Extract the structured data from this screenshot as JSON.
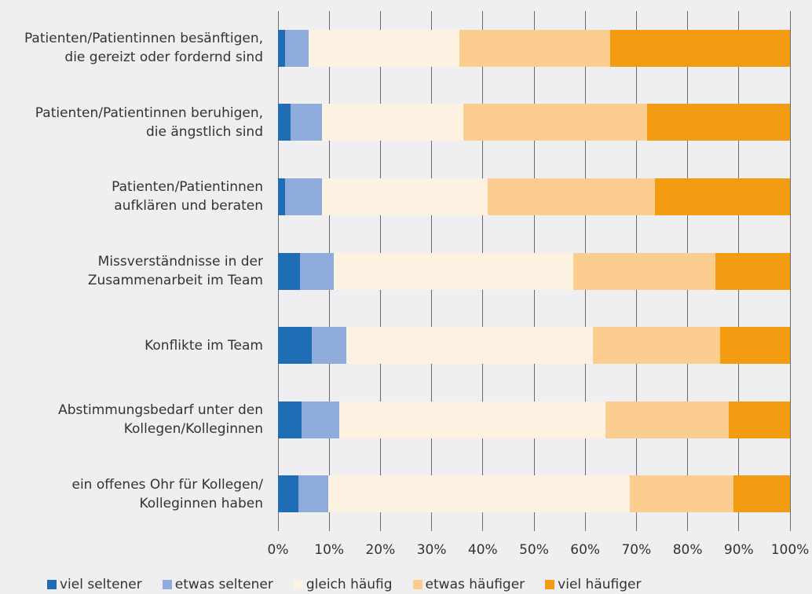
{
  "chart_data": {
    "type": "stacked-bar-horizontal",
    "categories": [
      "Patienten/Patientinnen besänftigen,\ndie gereizt oder fordernd sind",
      "Patienten/Patientinnen beruhigen,\ndie ängstlich sind",
      "Patienten/Patientinnen\naufklären und beraten",
      "Missverständnisse in der\nZusammenarbeit im Team",
      "Konflikte im Team",
      "Abstimmungsbedarf unter den\nKollegen/Kolleginnen",
      "ein offenes Ohr für Kollegen/\nKolleginnen haben"
    ],
    "series": [
      {
        "name": "viel seltener",
        "color": "#1f6db5",
        "values": [
          1.4,
          2.5,
          1.4,
          4.3,
          6.6,
          4.6,
          4.0
        ]
      },
      {
        "name": "etwas seltener",
        "color": "#8fabdc",
        "values": [
          4.6,
          6.1,
          7.2,
          6.6,
          6.7,
          7.4,
          5.8
        ]
      },
      {
        "name": "gleich häufig",
        "color": "#fdf1e1",
        "values": [
          29.4,
          27.6,
          32.4,
          46.8,
          48.2,
          52.0,
          58.9
        ]
      },
      {
        "name": "etwas häufiger",
        "color": "#fbcd8e",
        "values": [
          29.5,
          35.9,
          32.6,
          27.7,
          24.8,
          24.0,
          20.3
        ]
      },
      {
        "name": "viel häufiger",
        "color": "#f39c12",
        "values": [
          35.1,
          27.9,
          26.4,
          14.6,
          13.7,
          12.0,
          11.0
        ]
      }
    ],
    "xlim": [
      0,
      100
    ],
    "xticks": [
      {
        "value": 0,
        "label": "0%"
      },
      {
        "value": 10,
        "label": "10%"
      },
      {
        "value": 20,
        "label": "20%"
      },
      {
        "value": 30,
        "label": "30%"
      },
      {
        "value": 40,
        "label": "40%"
      },
      {
        "value": 50,
        "label": "50%"
      },
      {
        "value": 60,
        "label": "60%"
      },
      {
        "value": 70,
        "label": "70%"
      },
      {
        "value": 80,
        "label": "80%"
      },
      {
        "value": 90,
        "label": "90%"
      },
      {
        "value": 100,
        "label": "100%"
      }
    ],
    "grid": true,
    "legend": "bottom"
  }
}
